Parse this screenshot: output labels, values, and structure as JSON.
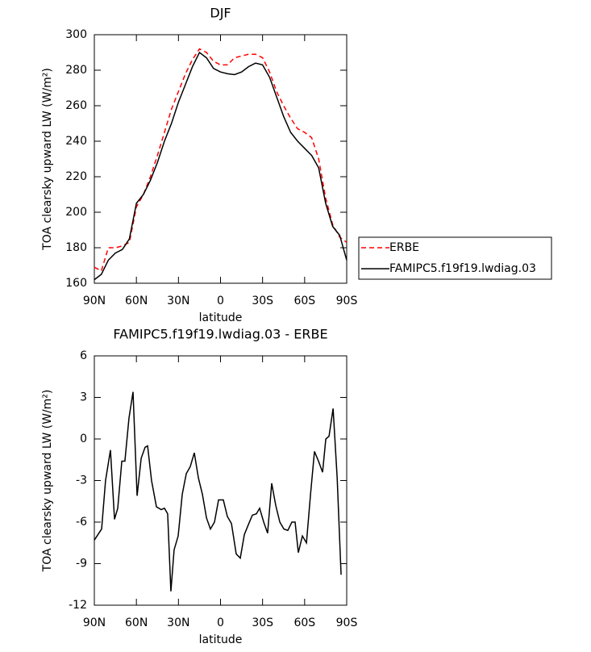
{
  "chart_data": [
    {
      "type": "line",
      "title": "DJF",
      "x_label": "latitude",
      "y_label": "TOA clearsky upward LW (W/m²)",
      "x": [
        90,
        85,
        80,
        75,
        70,
        65,
        60,
        55,
        50,
        45,
        40,
        35,
        30,
        25,
        20,
        15,
        10,
        5,
        0,
        -5,
        -10,
        -15,
        -20,
        -25,
        -30,
        -35,
        -40,
        -45,
        -50,
        -55,
        -60,
        -65,
        -70,
        -75,
        -80,
        -85,
        -90
      ],
      "series": [
        {
          "name": "ERBE",
          "color": "#ff0000",
          "line_style": "dashed",
          "values": [
            169,
            167,
            180,
            180,
            181,
            183,
            203,
            210,
            220,
            232,
            245,
            258,
            268,
            278,
            286,
            292,
            290,
            285,
            283,
            283,
            287,
            288,
            289,
            289,
            287,
            279,
            268,
            260,
            253,
            247,
            245,
            242,
            230,
            208,
            193,
            186,
            183
          ]
        },
        {
          "name": "FAMIPC5.f19f19.lwdiag.03",
          "color": "#000000",
          "line_style": "solid",
          "values": [
            162,
            165,
            173,
            177,
            179,
            185,
            205,
            210,
            218,
            228,
            240,
            250,
            262,
            272,
            282,
            290,
            287,
            281,
            279,
            278,
            277.5,
            279,
            282,
            284,
            283,
            276,
            265,
            254,
            245,
            240,
            236,
            232,
            225,
            205,
            192,
            187,
            173
          ]
        }
      ],
      "xlim": [
        90,
        -90
      ],
      "xticks": [
        {
          "value": 90,
          "label": "90N"
        },
        {
          "value": 60,
          "label": "60N"
        },
        {
          "value": 30,
          "label": "30N"
        },
        0,
        {
          "value": -30,
          "label": "30S"
        },
        {
          "value": -60,
          "label": "60S"
        },
        {
          "value": -90,
          "label": "90S"
        }
      ],
      "ylim": [
        160,
        300
      ],
      "yticks": [
        160,
        180,
        200,
        220,
        240,
        260,
        280,
        300
      ],
      "legend": "right"
    },
    {
      "type": "line",
      "title": "FAMIPC5.f19f19.lwdiag.03 - ERBE",
      "x_label": "latitude",
      "y_label": "TOA clearsky upward LW (W/m²)",
      "x": [
        90,
        84.8,
        82,
        78.5,
        75.6,
        73.3,
        70.4,
        68.2,
        65.3,
        62.4,
        59.5,
        56.6,
        53.8,
        52,
        49.2,
        45.7,
        42.3,
        40,
        37.7,
        35.4,
        33.1,
        30.2,
        27.3,
        24.4,
        21.6,
        18.7,
        15.8,
        12.9,
        10,
        7.2,
        4.3,
        1.4,
        -2,
        -4.9,
        -7.8,
        -11.2,
        -14.1,
        -17,
        -19.8,
        -22.7,
        -25.6,
        -27.9,
        -30.8,
        -33.6,
        -36.5,
        -39.4,
        -42.3,
        -45.2,
        -48,
        -50.9,
        -53.2,
        -55.5,
        -58.4,
        -61.3,
        -64.2,
        -67,
        -69.9,
        -72.8,
        -75.1,
        -77.4,
        -80.3,
        -83.2,
        -86
      ],
      "series": [
        {
          "color": "#000000",
          "values": [
            -7.3,
            -6.5,
            -3,
            -0.8,
            -5.8,
            -5,
            -1.6,
            -1.6,
            1.5,
            3.4,
            -4.1,
            -1.4,
            -0.6,
            -0.5,
            -3,
            -4.9,
            -5.1,
            -5,
            -5.4,
            -11,
            -8,
            -7,
            -4,
            -2.5,
            -2,
            -1,
            -2.8,
            -4,
            -5.7,
            -6.5,
            -6,
            -4.4,
            -4.4,
            -5.6,
            -6.1,
            -8.3,
            -8.6,
            -6.9,
            -6.2,
            -5.5,
            -5.4,
            -5,
            -6,
            -6.8,
            -3.2,
            -4.8,
            -6,
            -6.5,
            -6.6,
            -6,
            -6,
            -8.2,
            -7,
            -7.5,
            -4,
            -0.9,
            -1.6,
            -2.4,
            0,
            0.2,
            2.2,
            -2.8,
            -9.8
          ]
        }
      ],
      "xlim": [
        90,
        -90
      ],
      "xticks": [
        {
          "value": 90,
          "label": "90N"
        },
        {
          "value": 60,
          "label": "60N"
        },
        {
          "value": 30,
          "label": "30N"
        },
        0,
        {
          "value": -30,
          "label": "30S"
        },
        {
          "value": -60,
          "label": "60S"
        },
        {
          "value": -90,
          "label": "90S"
        }
      ],
      "ylim": [
        -12,
        6
      ],
      "yticks": [
        -12,
        -9,
        -6,
        -3,
        0,
        3,
        6
      ]
    }
  ]
}
